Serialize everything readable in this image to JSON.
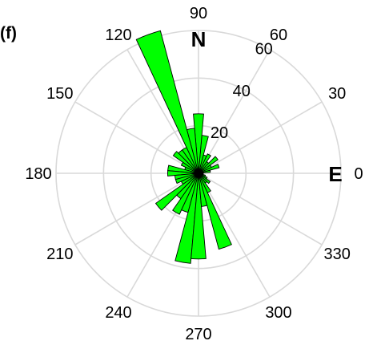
{
  "chart_data": {
    "type": "polar-bar",
    "title": "",
    "panel_label": "(f)",
    "compass_labels": {
      "north": "N",
      "east": "E"
    },
    "radial_ticks": [
      20,
      40,
      60
    ],
    "radial_max": 60,
    "angle_ticks": [
      "0",
      "30",
      "60",
      "90",
      "120",
      "150",
      "180",
      "210",
      "240",
      "270",
      "300",
      "330"
    ],
    "bin_width_deg": 10,
    "bars": [
      {
        "angle": 0,
        "value": 2
      },
      {
        "angle": 10,
        "value": 5
      },
      {
        "angle": 20,
        "value": 9
      },
      {
        "angle": 30,
        "value": 6
      },
      {
        "angle": 40,
        "value": 10
      },
      {
        "angle": 50,
        "value": 6
      },
      {
        "angle": 60,
        "value": 9
      },
      {
        "angle": 70,
        "value": 8
      },
      {
        "angle": 80,
        "value": 16
      },
      {
        "angle": 90,
        "value": 25
      },
      {
        "angle": 100,
        "value": 19
      },
      {
        "angle": 110,
        "value": 62
      },
      {
        "angle": 120,
        "value": 12
      },
      {
        "angle": 130,
        "value": 12
      },
      {
        "angle": 140,
        "value": 13
      },
      {
        "angle": 150,
        "value": 8
      },
      {
        "angle": 160,
        "value": 6
      },
      {
        "angle": 170,
        "value": 13
      },
      {
        "angle": 180,
        "value": 13
      },
      {
        "angle": 190,
        "value": 10
      },
      {
        "angle": 200,
        "value": 10
      },
      {
        "angle": 210,
        "value": 8
      },
      {
        "angle": 220,
        "value": 22
      },
      {
        "angle": 230,
        "value": 13
      },
      {
        "angle": 240,
        "value": 19
      },
      {
        "angle": 250,
        "value": 17
      },
      {
        "angle": 260,
        "value": 38
      },
      {
        "angle": 270,
        "value": 36
      },
      {
        "angle": 280,
        "value": 14
      },
      {
        "angle": 290,
        "value": 33
      },
      {
        "angle": 300,
        "value": 9
      },
      {
        "angle": 310,
        "value": 5
      },
      {
        "angle": 320,
        "value": 6
      },
      {
        "angle": 330,
        "value": 4
      },
      {
        "angle": 340,
        "value": 3
      },
      {
        "angle": 350,
        "value": 2
      }
    ],
    "colors": {
      "bar_fill": "#00ff00",
      "bar_stroke": "#000000",
      "grid": "#d9d9d9",
      "text": "#000000"
    }
  }
}
